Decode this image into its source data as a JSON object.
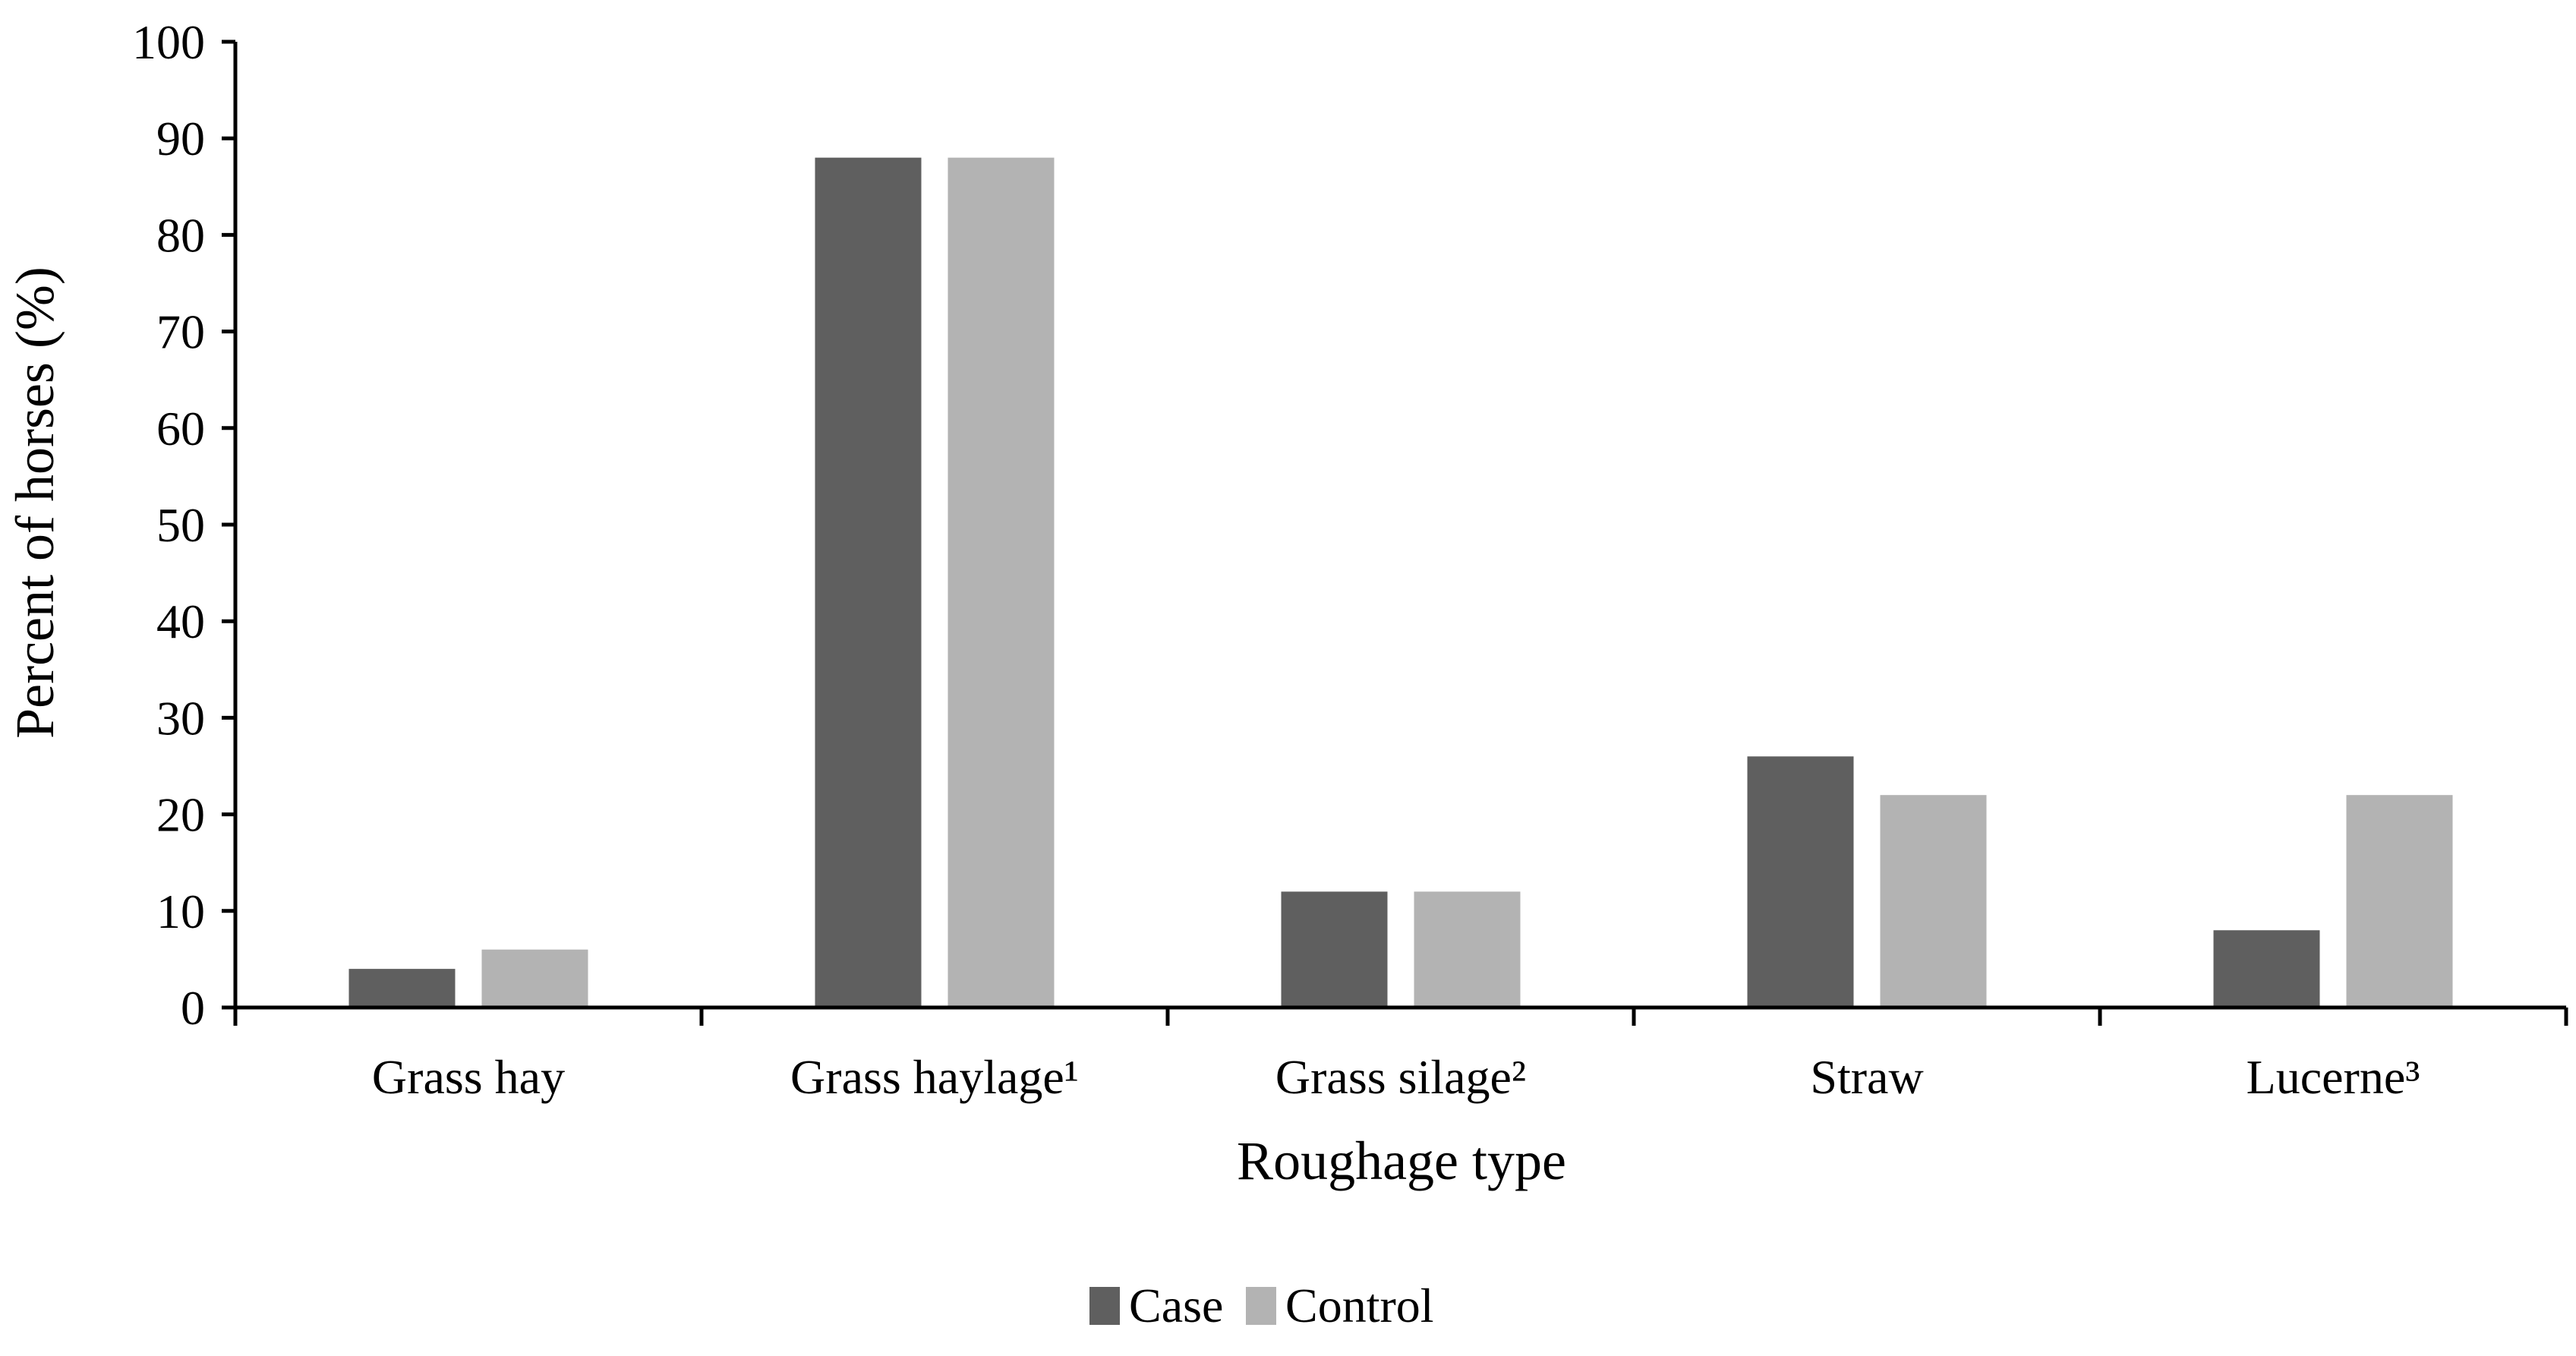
{
  "chart_data": {
    "type": "bar",
    "categories": [
      "Grass hay",
      "Grass haylage¹",
      "Grass silage²",
      "Straw",
      "Lucerne³"
    ],
    "series": [
      {
        "name": "Case",
        "values": [
          4,
          88,
          12,
          26,
          8
        ],
        "color": "#5f5f5f"
      },
      {
        "name": "Control",
        "values": [
          6,
          88,
          12,
          22,
          22
        ],
        "color": "#b3b3b3"
      }
    ],
    "xlabel": "Roughage type",
    "ylabel": "Percent of horses (%)",
    "ylim": [
      0,
      100
    ],
    "yticks": [
      0,
      10,
      20,
      30,
      40,
      50,
      60,
      70,
      80,
      90,
      100
    ],
    "grid": false,
    "legend_position": "bottom-center"
  }
}
